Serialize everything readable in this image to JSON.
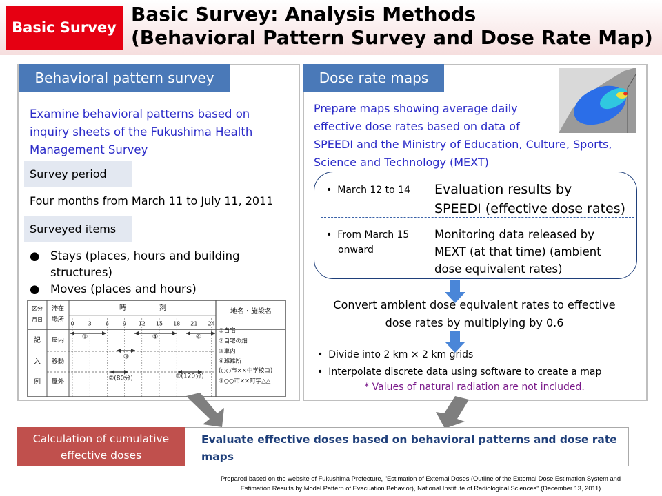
{
  "header": {
    "label": "Basic Survey",
    "title_lines": [
      "Basic Survey: Analysis Methods",
      "(Behavioral Pattern Survey and Dose Rate Map)"
    ]
  },
  "left": {
    "heading": "Behavioral pattern survey",
    "intro_lines": [
      "Examine behavioral patterns based on",
      "inquiry sheets of the Fukushima Health",
      "Management Survey"
    ],
    "period_label": "Survey period",
    "period": "Four months from March 11 to July 11, 2011",
    "items_label": "Surveyed items",
    "items": [
      [
        "Stays (places, hours and building",
        "structures)"
      ],
      [
        "Moves (places and hours)"
      ]
    ],
    "form": {
      "corner_top": "区分",
      "corner_bottom": "月日",
      "stay_header": [
        "滞在",
        "場所"
      ],
      "time_header": [
        "時",
        "刻"
      ],
      "hours": [
        "0",
        "3",
        "6",
        "9",
        "12",
        "15",
        "18",
        "21",
        "24"
      ],
      "place_header": "地名・施設名",
      "example_label": [
        "記",
        "入",
        "例"
      ],
      "rows": [
        "屋内",
        "移動",
        "屋外"
      ],
      "places": [
        "①自宅",
        "②自宅の畑",
        "③車内",
        "④避難所",
        "(○○市××中学校コ)",
        "⑤○○市××町字△△"
      ],
      "markers": [
        "①",
        "④",
        "④",
        "③",
        "②(80分)",
        "⑤(120分)"
      ]
    }
  },
  "right": {
    "heading": "Dose rate maps",
    "intro_lines": [
      "Prepare maps showing average daily",
      "effective dose rates based on data of",
      "SPEEDI and the Ministry of Education, Culture, Sports,",
      "Science and Technology (MEXT)"
    ],
    "rows": [
      {
        "period_lines": [
          "March 12 to 14"
        ],
        "source_lines": [
          "Evaluation results by",
          "SPEEDI (effective dose rates)"
        ]
      },
      {
        "period_lines": [
          "From March 15",
          "onward"
        ],
        "source_lines": [
          "Monitoring data released by",
          "MEXT (at that time) (ambient",
          "dose equivalent rates)"
        ]
      }
    ],
    "convert_lines": [
      "Convert ambient dose equivalent rates to effective",
      "dose rates by multiplying by 0.6"
    ],
    "steps": [
      "Divide into 2 km × 2 km grids",
      "Interpolate discrete data using software to create a map"
    ],
    "note": "* Values of natural radiation are not included."
  },
  "bottom": {
    "label_lines": [
      "Calculation of cumulative",
      "effective doses"
    ],
    "text": "Evaluate effective doses based on behavioral patterns and dose rate maps"
  },
  "footer_lines": [
    "Prepared based on the website of Fukushima Prefecture, \"Estimation of External Doses (Outline of the External Dose Estimation System and",
    "Estimation Results by Model Pattern of Evacuation Behavior), National Institute of Radiological Sciences\" (December 13, 2011)"
  ]
}
